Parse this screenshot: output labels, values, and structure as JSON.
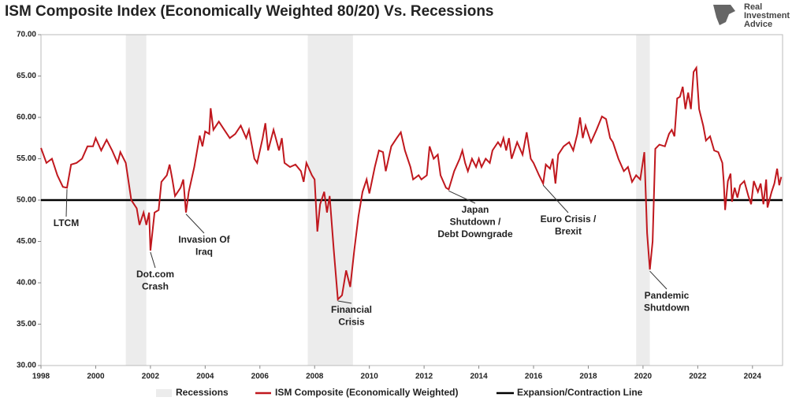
{
  "chart_data": {
    "type": "line",
    "title": "ISM Composite Index (Economically Weighted 80/20) Vs. Recessions",
    "logo": [
      "Real",
      "Investment",
      "Advice"
    ],
    "x": [
      1998.0,
      1998.2,
      1998.4,
      1998.6,
      1998.8,
      1998.95,
      1999.1,
      1999.3,
      1999.5,
      1999.7,
      1999.9,
      2000.0,
      2000.2,
      2000.4,
      2000.6,
      2000.8,
      2000.9,
      2001.1,
      2001.3,
      2001.5,
      2001.6,
      2001.75,
      2001.85,
      2001.95,
      2002.0,
      2002.15,
      2002.3,
      2002.4,
      2002.6,
      2002.7,
      2002.8,
      2002.9,
      2003.1,
      2003.2,
      2003.3,
      2003.4,
      2003.6,
      2003.8,
      2003.9,
      2004.0,
      2004.15,
      2004.2,
      2004.3,
      2004.5,
      2004.7,
      2004.9,
      2005.1,
      2005.3,
      2005.5,
      2005.6,
      2005.8,
      2005.9,
      2006.1,
      2006.2,
      2006.3,
      2006.5,
      2006.7,
      2006.8,
      2006.9,
      2007.1,
      2007.3,
      2007.5,
      2007.6,
      2007.7,
      2007.9,
      2008.0,
      2008.1,
      2008.2,
      2008.35,
      2008.45,
      2008.55,
      2008.7,
      2008.85,
      2009.0,
      2009.15,
      2009.3,
      2009.45,
      2009.6,
      2009.75,
      2009.9,
      2010.0,
      2010.2,
      2010.35,
      2010.5,
      2010.6,
      2010.8,
      2011.0,
      2011.15,
      2011.3,
      2011.5,
      2011.6,
      2011.8,
      2011.9,
      2012.1,
      2012.2,
      2012.35,
      2012.5,
      2012.6,
      2012.8,
      2012.9,
      2013.1,
      2013.3,
      2013.4,
      2013.5,
      2013.6,
      2013.75,
      2013.9,
      2014.0,
      2014.1,
      2014.25,
      2014.4,
      2014.5,
      2014.7,
      2014.8,
      2014.9,
      2015.0,
      2015.1,
      2015.2,
      2015.4,
      2015.6,
      2015.75,
      2015.9,
      2016.0,
      2016.2,
      2016.35,
      2016.45,
      2016.6,
      2016.7,
      2016.8,
      2016.9,
      2017.1,
      2017.3,
      2017.45,
      2017.6,
      2017.7,
      2017.8,
      2017.9,
      2018.1,
      2018.3,
      2018.5,
      2018.65,
      2018.8,
      2018.9,
      2019.1,
      2019.3,
      2019.45,
      2019.6,
      2019.75,
      2019.9,
      2020.05,
      2020.15,
      2020.25,
      2020.35,
      2020.45,
      2020.6,
      2020.8,
      2020.95,
      2021.05,
      2021.15,
      2021.25,
      2021.35,
      2021.45,
      2021.55,
      2021.65,
      2021.75,
      2021.85,
      2021.95,
      2022.05,
      2022.2,
      2022.3,
      2022.45,
      2022.6,
      2022.75,
      2022.9,
      2022.95,
      2023.0,
      2023.1,
      2023.2,
      2023.25,
      2023.35,
      2023.45,
      2023.55,
      2023.7,
      2023.85,
      2023.95,
      2024.05,
      2024.2,
      2024.3,
      2024.4,
      2024.5,
      2024.55,
      2024.7,
      2024.8,
      2024.9,
      2024.98,
      2025.05
    ],
    "series": [
      {
        "name": "ISM Composite (Economically Weighted)",
        "color": "#c0181e",
        "values": [
          56.3,
          54.5,
          55,
          53,
          51.6,
          51.5,
          54.3,
          54.5,
          55,
          56.5,
          56.5,
          57.5,
          56,
          57.3,
          56,
          54.5,
          55.8,
          54.5,
          50,
          49,
          47,
          48.5,
          47,
          48.5,
          43.9,
          48.5,
          48.8,
          52.2,
          53,
          54.3,
          52.5,
          50.5,
          51.5,
          52.5,
          48.5,
          51,
          54,
          57.8,
          56.5,
          58.3,
          58,
          61.1,
          58.5,
          59.5,
          58.5,
          57.5,
          58,
          59,
          57.5,
          58.5,
          55,
          54.5,
          57.5,
          59.3,
          56,
          58.5,
          56,
          57.5,
          54.5,
          54,
          54.3,
          53.5,
          52.2,
          54.5,
          53,
          52.5,
          46.2,
          49.5,
          51,
          48.5,
          50.5,
          44,
          38,
          38.5,
          41.5,
          39.5,
          44,
          48,
          51,
          52.5,
          50.8,
          54,
          56,
          55.8,
          53.5,
          56.5,
          57.5,
          58.2,
          56,
          54,
          52.5,
          53,
          52.5,
          53,
          56.5,
          55,
          55.5,
          53,
          51.5,
          51.3,
          53.5,
          55,
          56,
          54.5,
          53.5,
          55,
          54,
          55,
          54,
          55,
          54.5,
          56,
          57,
          56.5,
          57.5,
          56,
          57.5,
          55,
          57,
          55.5,
          58.2,
          55,
          54.5,
          53,
          52,
          54.3,
          53.8,
          55,
          52,
          55.5,
          56.5,
          57,
          56,
          58,
          60,
          57.5,
          59,
          57,
          58.5,
          60.1,
          59.8,
          57.5,
          57,
          55,
          53.5,
          54,
          52.2,
          53,
          52.5,
          55.8,
          46,
          41.6,
          45,
          56.2,
          56.7,
          56.5,
          58,
          58.5,
          57.7,
          62.3,
          62.5,
          63.7,
          61,
          63,
          61,
          65.5,
          66,
          61,
          59,
          57.2,
          57.7,
          56,
          55.8,
          54.5,
          52.3,
          48.8,
          52.3,
          53.2,
          49.8,
          51.5,
          50.3,
          51.8,
          52.3,
          50.5,
          49.5,
          52.3,
          51,
          52,
          49.5,
          52.5,
          49.1,
          51,
          52,
          53.8,
          51.8,
          52.8
        ]
      }
    ],
    "reference_line": {
      "name": "Expansion/Contraction Line",
      "value": 50,
      "color": "#000000"
    },
    "shaded_ranges": {
      "name": "Recessions",
      "color": "#ececec",
      "ranges": [
        [
          2001.1,
          2001.85
        ],
        [
          2007.75,
          2009.4
        ],
        [
          2019.75,
          2020.25
        ]
      ]
    },
    "annotations": [
      {
        "lines": [
          "LTCM"
        ],
        "x": 1998.95,
        "y": 51.5
      },
      {
        "lines": [
          "Dot.com",
          "Crash"
        ],
        "x": 2002.0,
        "y": 43.9
      },
      {
        "lines": [
          "Invasion Of",
          "Iraq"
        ],
        "x": 2003.3,
        "y": 48.5
      },
      {
        "lines": [
          "Financial",
          "Crisis"
        ],
        "x": 2008.85,
        "y": 38
      },
      {
        "lines": [
          "Japan",
          "Shutdown /",
          "Debt Downgrade"
        ],
        "x": 2012.9,
        "y": 51.3
      },
      {
        "lines": [
          "Euro Crisis /",
          "Brexit"
        ],
        "x": 2016.35,
        "y": 52
      },
      {
        "lines": [
          "Pandemic",
          "Shutdown"
        ],
        "x": 2020.25,
        "y": 41.6
      }
    ],
    "xlim": [
      1998,
      2025.1
    ],
    "xticks": [
      1998,
      2000,
      2002,
      2004,
      2006,
      2008,
      2010,
      2012,
      2014,
      2016,
      2018,
      2020,
      2022,
      2024
    ],
    "ylim": [
      30,
      70
    ],
    "yticks": [
      {
        "value": 30,
        "label": "30.00"
      },
      {
        "value": 35,
        "label": "35.00"
      },
      {
        "value": 40,
        "label": "40.00"
      },
      {
        "value": 45,
        "label": "45.00"
      },
      {
        "value": 50,
        "label": "50.00"
      },
      {
        "value": 55,
        "label": "55.00"
      },
      {
        "value": 60,
        "label": "60.00"
      },
      {
        "value": 65,
        "label": "65.00"
      },
      {
        "value": 70,
        "label": "70.00"
      }
    ]
  }
}
